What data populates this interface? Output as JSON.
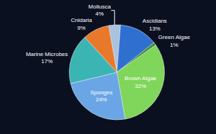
{
  "chart_data": {
    "type": "pie",
    "categories": [
      "Mollusca",
      "Ascidians",
      "Green Algae",
      "Brown Algae",
      "Sponges",
      "Marine Microbes",
      "Cnidaria"
    ],
    "values": [
      4,
      13,
      1,
      32,
      24,
      17,
      9
    ],
    "value_labels": [
      "4%",
      "13%",
      "1%",
      "32%",
      "24%",
      "17%",
      "9%"
    ],
    "colors": [
      "#a9c2de",
      "#2f6fd0",
      "#3c8a3a",
      "#7fd65a",
      "#6aa6e6",
      "#3ab5b3",
      "#e8792b"
    ],
    "data_labels": true
  }
}
